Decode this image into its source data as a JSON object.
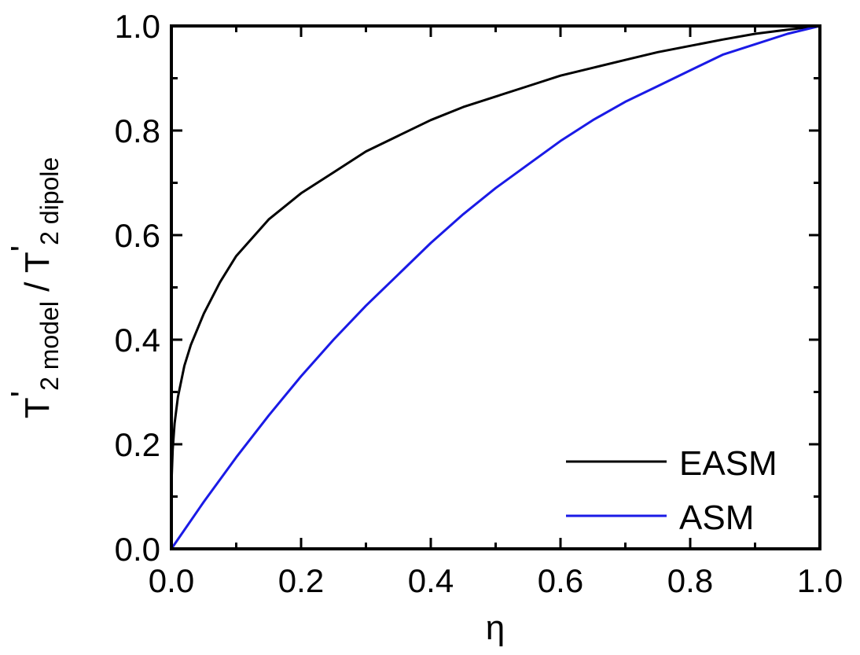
{
  "chart_data": {
    "type": "line",
    "xlabel": "η",
    "ylabel": {
      "main1": "T",
      "prime": "'",
      "sub1": "2 model",
      "sep": " / T",
      "sub2": "2 dipole"
    },
    "xlim": [
      0.0,
      1.0
    ],
    "ylim": [
      0.0,
      1.0
    ],
    "xticks": [
      "0.0",
      "0.2",
      "0.4",
      "0.6",
      "0.8",
      "1.0"
    ],
    "yticks": [
      "0.0",
      "0.2",
      "0.4",
      "0.6",
      "0.8",
      "1.0"
    ],
    "grid": false,
    "legend_position": "bottom-right",
    "series": [
      {
        "name": "EASM",
        "color": "#000000",
        "x": [
          0.0,
          0.002,
          0.005,
          0.01,
          0.02,
          0.03,
          0.05,
          0.075,
          0.1,
          0.15,
          0.2,
          0.25,
          0.3,
          0.35,
          0.4,
          0.45,
          0.5,
          0.55,
          0.6,
          0.65,
          0.7,
          0.75,
          0.8,
          0.85,
          0.9,
          0.95,
          1.0
        ],
        "values": [
          0.12,
          0.19,
          0.24,
          0.29,
          0.35,
          0.39,
          0.45,
          0.51,
          0.56,
          0.63,
          0.68,
          0.72,
          0.76,
          0.79,
          0.82,
          0.845,
          0.865,
          0.885,
          0.905,
          0.92,
          0.935,
          0.95,
          0.962,
          0.974,
          0.985,
          0.993,
          1.0
        ]
      },
      {
        "name": "ASM",
        "color": "#1a1ae6",
        "x": [
          0.0,
          0.05,
          0.1,
          0.15,
          0.2,
          0.25,
          0.3,
          0.35,
          0.4,
          0.45,
          0.5,
          0.55,
          0.6,
          0.65,
          0.7,
          0.75,
          0.8,
          0.85,
          0.9,
          0.95,
          1.0
        ],
        "values": [
          0.0,
          0.09,
          0.175,
          0.255,
          0.33,
          0.4,
          0.465,
          0.525,
          0.585,
          0.64,
          0.69,
          0.735,
          0.78,
          0.82,
          0.855,
          0.885,
          0.915,
          0.945,
          0.965,
          0.985,
          1.0
        ]
      }
    ]
  }
}
